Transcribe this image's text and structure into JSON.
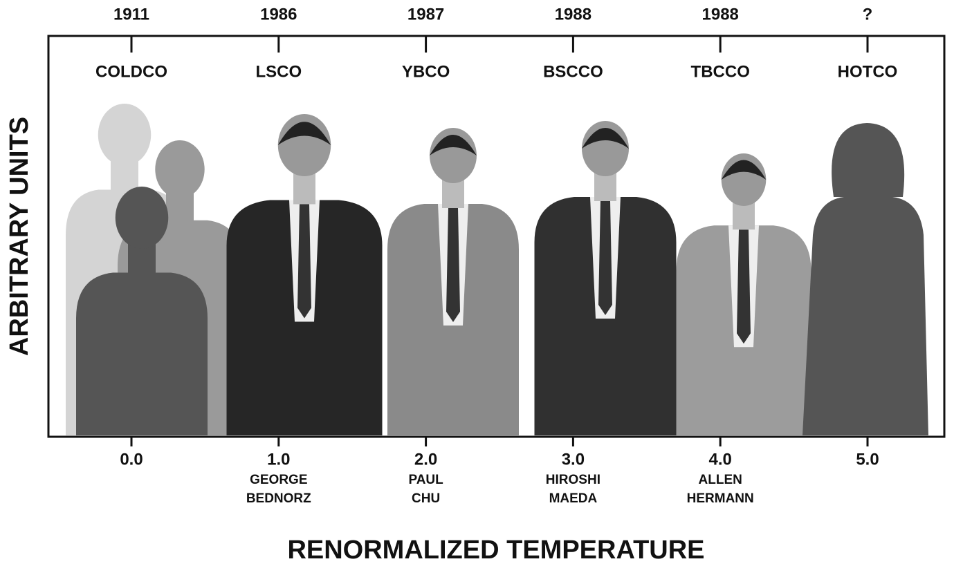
{
  "y_axis_title": "ARBITRARY UNITS",
  "x_axis_title": "RENORMALIZED TEMPERATURE",
  "columns": [
    {
      "year": "1911",
      "compound": "COLDCO",
      "tick": "0.0"
    },
    {
      "year": "1986",
      "compound": "LSCO",
      "tick": "1.0",
      "name_lines": [
        "GEORGE",
        "BEDNORZ"
      ]
    },
    {
      "year": "1987",
      "compound": "YBCO",
      "tick": "2.0",
      "name_lines": [
        "PAUL",
        "CHU"
      ]
    },
    {
      "year": "1988",
      "compound": "BSCCO",
      "tick": "3.0",
      "name_lines": [
        "HIROSHI",
        "MAEDA"
      ]
    },
    {
      "year": "1988",
      "compound": "TBCCO",
      "tick": "4.0",
      "name_lines": [
        "ALLEN",
        "HERMANN"
      ]
    },
    {
      "year": "?",
      "compound": "HOTCO",
      "tick": "5.0"
    }
  ]
}
